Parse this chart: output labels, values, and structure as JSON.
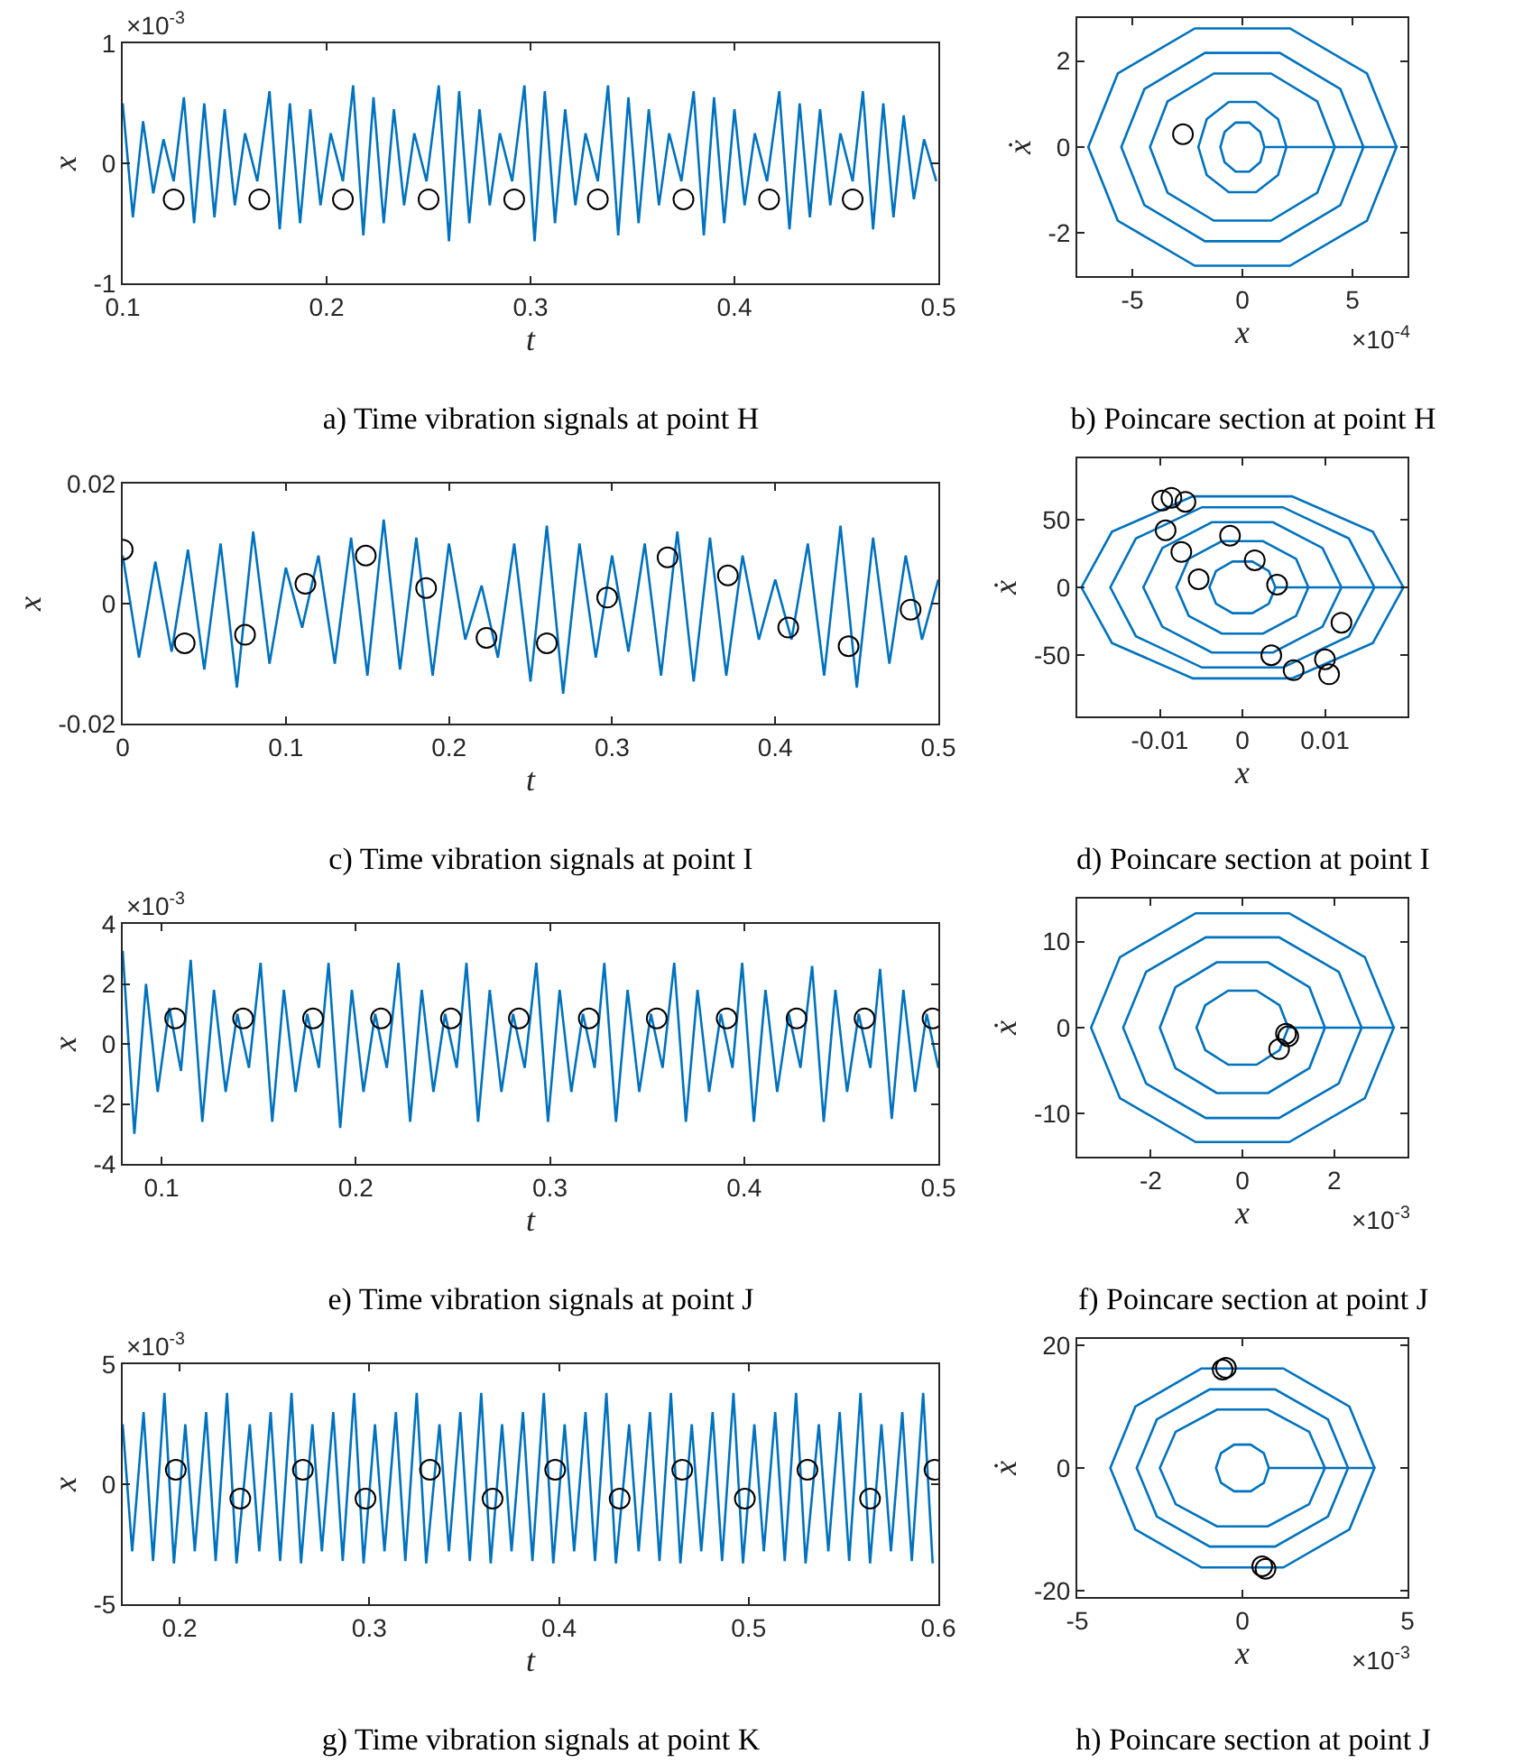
{
  "chart_data": [
    {
      "type": "line",
      "title": "a) Time vibration signals at point H",
      "xlabel": "t",
      "ylabel": "x",
      "annotations": [
        "×10$^{-3}$"
      ],
      "xlim": [
        0.1,
        0.5
      ],
      "xticks": [
        0.1,
        0.2,
        0.3,
        0.4,
        0.5
      ],
      "ylim": [
        -1,
        1
      ],
      "yticks": [
        -1,
        0,
        1
      ],
      "series": [
        {
          "type": "line",
          "color": "#0072bd",
          "x": [
            0.1,
            0.105,
            0.11,
            0.115,
            0.12,
            0.125,
            0.13,
            0.135,
            0.14,
            0.145,
            0.15,
            0.155,
            0.16,
            0.166,
            0.172,
            0.177,
            0.182,
            0.187,
            0.192,
            0.197,
            0.202,
            0.208,
            0.213,
            0.218,
            0.223,
            0.228,
            0.233,
            0.238,
            0.243,
            0.249,
            0.255,
            0.26,
            0.265,
            0.27,
            0.275,
            0.28,
            0.285,
            0.291,
            0.297,
            0.302,
            0.307,
            0.312,
            0.317,
            0.322,
            0.327,
            0.333,
            0.338,
            0.343,
            0.348,
            0.353,
            0.358,
            0.363,
            0.368,
            0.374,
            0.38,
            0.385,
            0.39,
            0.395,
            0.4,
            0.405,
            0.41,
            0.416,
            0.422,
            0.427,
            0.432,
            0.437,
            0.442,
            0.447,
            0.452,
            0.458,
            0.463,
            0.468,
            0.473,
            0.478,
            0.483,
            0.488,
            0.493,
            0.499
          ],
          "values": [
            0.5,
            -0.45,
            0.35,
            -0.25,
            0.2,
            -0.15,
            0.55,
            -0.5,
            0.5,
            -0.45,
            0.45,
            -0.35,
            0.25,
            -0.15,
            0.6,
            -0.55,
            0.5,
            -0.5,
            0.45,
            -0.35,
            0.25,
            -0.15,
            0.65,
            -0.6,
            0.55,
            -0.5,
            0.45,
            -0.35,
            0.25,
            -0.15,
            0.65,
            -0.65,
            0.6,
            -0.5,
            0.45,
            -0.35,
            0.25,
            -0.15,
            0.65,
            -0.65,
            0.6,
            -0.5,
            0.45,
            -0.35,
            0.25,
            -0.15,
            0.65,
            -0.6,
            0.55,
            -0.5,
            0.45,
            -0.35,
            0.25,
            -0.15,
            0.6,
            -0.6,
            0.55,
            -0.5,
            0.45,
            -0.35,
            0.25,
            -0.15,
            0.6,
            -0.55,
            0.5,
            -0.45,
            0.45,
            -0.35,
            0.25,
            -0.15,
            0.6,
            -0.55,
            0.5,
            -0.45,
            0.4,
            -0.3,
            0.2,
            -0.15
          ]
        },
        {
          "type": "scatter",
          "color": "#000000",
          "marker": "circle",
          "x": [
            0.125,
            0.167,
            0.208,
            0.25,
            0.292,
            0.333,
            0.375,
            0.417,
            0.458
          ],
          "values": [
            -0.3,
            -0.3,
            -0.3,
            -0.3,
            -0.3,
            -0.3,
            -0.3,
            -0.3,
            -0.3
          ]
        }
      ]
    },
    {
      "type": "line",
      "title": "b) Poincare section at point H",
      "xlabel": "x",
      "ylabel": "ẋ",
      "annotations": [
        "×10$^{-4}$"
      ],
      "xlim": [
        -7.5,
        7.5
      ],
      "xticks": [
        -5,
        0,
        5
      ],
      "ylim": [
        -3,
        3
      ],
      "yticks": [
        -2,
        0,
        2
      ],
      "series": [
        {
          "type": "line",
          "color": "#0072bd",
          "x": [
            7,
            5.66,
            2.16,
            -2.16,
            -5.66,
            -7,
            -5.66,
            -2.16,
            2.16,
            5.66,
            7,
            5.5,
            4.45,
            1.7,
            -1.7,
            -4.45,
            -5.5,
            -4.45,
            -1.7,
            1.7,
            4.45,
            5.5,
            4.2,
            3.4,
            1.3,
            -1.3,
            -3.4,
            -4.2,
            -3.4,
            -1.3,
            1.3,
            3.4,
            4.2,
            2,
            1.62,
            0.62,
            -0.62,
            -1.62,
            -2,
            -1.62,
            -0.62,
            0.62,
            1.62,
            2,
            1,
            0.81,
            0.31,
            -0.31,
            -0.81,
            -1,
            -0.81,
            -0.31,
            0.31,
            0.81,
            1
          ],
          "values": [
            0,
            1.71,
            2.76,
            2.76,
            1.71,
            0,
            -1.71,
            -2.76,
            -2.76,
            -1.71,
            0,
            0,
            1.35,
            2.19,
            2.19,
            1.35,
            0,
            -1.35,
            -2.19,
            -2.19,
            -1.35,
            0,
            0,
            1.06,
            1.71,
            1.71,
            1.06,
            0,
            -1.06,
            -1.71,
            -1.71,
            -1.06,
            0,
            0,
            0.65,
            1.05,
            1.05,
            0.65,
            0,
            -0.65,
            -1.05,
            -1.05,
            -0.65,
            0,
            0,
            0.35,
            0.57,
            0.57,
            0.35,
            0,
            -0.35,
            -0.57,
            -0.57,
            -0.35,
            0
          ]
        },
        {
          "type": "scatter",
          "color": "#000000",
          "marker": "circle",
          "x": [
            -2.7
          ],
          "values": [
            0.3
          ]
        }
      ]
    },
    {
      "type": "line",
      "title": "c) Time vibration signals at point I",
      "xlabel": "t",
      "ylabel": "x",
      "xlim": [
        0,
        0.5
      ],
      "xticks": [
        0,
        0.1,
        0.2,
        0.3,
        0.4,
        0.5
      ],
      "ylim": [
        -0.02,
        0.02
      ],
      "yticks": [
        -0.02,
        0,
        0.02
      ],
      "series": [
        {
          "type": "line",
          "color": "#0072bd",
          "x": [
            0,
            0.01,
            0.02,
            0.03,
            0.04,
            0.05,
            0.06,
            0.07,
            0.08,
            0.09,
            0.1,
            0.11,
            0.12,
            0.13,
            0.14,
            0.15,
            0.16,
            0.17,
            0.18,
            0.19,
            0.2,
            0.21,
            0.22,
            0.23,
            0.24,
            0.25,
            0.26,
            0.27,
            0.28,
            0.29,
            0.3,
            0.31,
            0.32,
            0.33,
            0.34,
            0.35,
            0.36,
            0.37,
            0.38,
            0.39,
            0.4,
            0.41,
            0.42,
            0.43,
            0.44,
            0.45,
            0.46,
            0.47,
            0.48,
            0.49,
            0.5
          ],
          "values": [
            0.008,
            -0.009,
            0.007,
            -0.008,
            0.009,
            -0.011,
            0.01,
            -0.014,
            0.012,
            -0.01,
            0.006,
            -0.004,
            0.008,
            -0.01,
            0.011,
            -0.012,
            0.014,
            -0.011,
            0.011,
            -0.012,
            0.01,
            -0.006,
            0.003,
            -0.009,
            0.01,
            -0.013,
            0.013,
            -0.015,
            0.01,
            -0.009,
            0.008,
            -0.008,
            0.01,
            -0.012,
            0.012,
            -0.013,
            0.011,
            -0.012,
            0.008,
            -0.006,
            0.004,
            -0.006,
            0.01,
            -0.012,
            0.013,
            -0.014,
            0.011,
            -0.01,
            0.008,
            -0.006,
            0.004
          ]
        },
        {
          "type": "scatter",
          "color": "#000000",
          "marker": "circle",
          "x": [
            0,
            0.038,
            0.075,
            0.112,
            0.149,
            0.186,
            0.223,
            0.26,
            0.297,
            0.334,
            0.371,
            0.408,
            0.445,
            0.483
          ],
          "values": [
            0.009,
            -0.0066,
            -0.0052,
            0.0033,
            0.008,
            0.0026,
            -0.0057,
            -0.0066,
            0.001,
            0.0077,
            0.0047,
            -0.004,
            -0.0071,
            -0.001
          ]
        }
      ]
    },
    {
      "type": "line",
      "title": "d) Poincare section at point I",
      "xlabel": "x",
      "ylabel": "ẋ",
      "xlim": [
        -0.02,
        0.02
      ],
      "xticks": [
        -0.01,
        0,
        0.01
      ],
      "ylim": [
        -95,
        95
      ],
      "yticks": [
        -50,
        0,
        50
      ],
      "series": [
        {
          "type": "line",
          "color": "#0072bd",
          "x": [
            0.0195,
            0.0158,
            0.006,
            -0.006,
            -0.0158,
            -0.0195,
            -0.0158,
            -0.006,
            0.006,
            0.0158,
            0.0195,
            0.016,
            0.0129,
            0.0049,
            -0.0049,
            -0.0129,
            -0.016,
            -0.0129,
            -0.0049,
            0.0049,
            0.0129,
            0.016,
            0.012,
            0.0097,
            0.0037,
            -0.0037,
            -0.0097,
            -0.012,
            -0.0097,
            -0.0037,
            0.0037,
            0.0097,
            0.012,
            0.008,
            0.0065,
            0.0025,
            -0.0025,
            -0.0065,
            -0.008,
            -0.0065,
            -0.0025,
            0.0025,
            0.0065,
            0.008,
            0.004,
            0.0032,
            0.0012,
            -0.0012,
            -0.0032,
            -0.004,
            -0.0032,
            -0.0012,
            0.0012,
            0.0032,
            0.004
          ],
          "values": [
            0,
            41,
            67,
            67,
            41,
            0,
            -41,
            -67,
            -67,
            -41,
            0,
            0,
            36,
            59,
            59,
            36,
            0,
            -36,
            -59,
            -59,
            -36,
            0,
            0,
            29,
            48,
            48,
            29,
            0,
            -29,
            -48,
            -48,
            -29,
            0,
            0,
            21,
            34,
            34,
            21,
            0,
            -21,
            -34,
            -34,
            -21,
            0,
            0,
            12,
            19,
            19,
            12,
            0,
            -12,
            -19,
            -19,
            -12,
            0
          ]
        },
        {
          "type": "scatter",
          "color": "#000000",
          "marker": "circle",
          "x": [
            -0.0097,
            -0.0086,
            -0.0069,
            -0.0093,
            -0.0074,
            -0.0053,
            -0.0015,
            0.0015,
            0.0042,
            0.012,
            0.0035,
            0.0062,
            0.01,
            0.0105
          ],
          "values": [
            64,
            66,
            63,
            42,
            26,
            6,
            38,
            20,
            2,
            -26,
            -50,
            -61,
            -53,
            -64
          ]
        }
      ]
    },
    {
      "type": "line",
      "title": "e) Time vibration signals at point J",
      "xlabel": "t",
      "ylabel": "x",
      "annotations": [
        "×10$^{-3}$"
      ],
      "xlim": [
        0.08,
        0.5
      ],
      "xticks": [
        0.1,
        0.2,
        0.3,
        0.4,
        0.5
      ],
      "ylim": [
        -4,
        4
      ],
      "yticks": [
        -4,
        -2,
        0,
        2,
        4
      ],
      "series": [
        {
          "type": "line",
          "color": "#0072bd",
          "x": [
            0.08,
            0.086,
            0.092,
            0.098,
            0.104,
            0.11,
            0.115,
            0.121,
            0.127,
            0.133,
            0.139,
            0.145,
            0.151,
            0.157,
            0.163,
            0.169,
            0.175,
            0.181,
            0.186,
            0.192,
            0.198,
            0.204,
            0.21,
            0.216,
            0.222,
            0.228,
            0.234,
            0.24,
            0.246,
            0.252,
            0.257,
            0.263,
            0.269,
            0.275,
            0.281,
            0.287,
            0.293,
            0.299,
            0.305,
            0.311,
            0.317,
            0.323,
            0.328,
            0.334,
            0.34,
            0.346,
            0.352,
            0.358,
            0.364,
            0.37,
            0.376,
            0.382,
            0.388,
            0.394,
            0.399,
            0.405,
            0.411,
            0.417,
            0.423,
            0.429,
            0.435,
            0.441,
            0.447,
            0.453,
            0.459,
            0.465,
            0.47,
            0.476,
            0.482,
            0.488,
            0.494,
            0.5
          ],
          "values": [
            3.1,
            -3.0,
            2.0,
            -1.6,
            1.2,
            -0.9,
            2.8,
            -2.6,
            1.8,
            -1.6,
            1.0,
            -0.8,
            2.7,
            -2.6,
            1.8,
            -1.6,
            1.0,
            -0.8,
            2.7,
            -2.8,
            1.8,
            -1.6,
            1.0,
            -0.8,
            2.7,
            -2.6,
            1.8,
            -1.6,
            1.0,
            -0.8,
            2.7,
            -2.6,
            1.8,
            -1.6,
            1.0,
            -0.8,
            2.7,
            -2.6,
            1.8,
            -1.6,
            1.0,
            -0.8,
            2.7,
            -2.6,
            1.8,
            -1.6,
            1.0,
            -0.8,
            2.7,
            -2.6,
            1.8,
            -1.6,
            1.0,
            -0.8,
            2.7,
            -2.6,
            1.8,
            -1.6,
            1.0,
            -0.8,
            2.6,
            -2.6,
            1.8,
            -1.6,
            1.0,
            -0.8,
            2.5,
            -2.5,
            1.8,
            -1.6,
            1.0,
            -0.8
          ]
        },
        {
          "type": "scatter",
          "color": "#000000",
          "marker": "circle",
          "x": [
            0.107,
            0.142,
            0.178,
            0.213,
            0.249,
            0.284,
            0.32,
            0.355,
            0.391,
            0.427,
            0.462,
            0.497
          ],
          "values": [
            0.85,
            0.85,
            0.85,
            0.85,
            0.85,
            0.85,
            0.85,
            0.85,
            0.85,
            0.85,
            0.85,
            0.85
          ]
        }
      ]
    },
    {
      "type": "line",
      "title": "f) Poincare section at point J",
      "xlabel": "x",
      "ylabel": "ẋ",
      "annotations": [
        "×10$^{-3}$"
      ],
      "xlim": [
        -3.6,
        3.6
      ],
      "xticks": [
        -2,
        0,
        2
      ],
      "ylim": [
        -15,
        15
      ],
      "yticks": [
        -10,
        0,
        10
      ],
      "series": [
        {
          "type": "line",
          "color": "#0072bd",
          "x": [
            3.3,
            2.67,
            1.02,
            -1.02,
            -2.67,
            -3.3,
            -2.67,
            -1.02,
            1.02,
            2.67,
            3.3,
            2.6,
            2.1,
            0.8,
            -0.8,
            -2.1,
            -2.6,
            -2.1,
            -0.8,
            0.8,
            2.1,
            2.6,
            1.8,
            1.46,
            0.56,
            -0.56,
            -1.46,
            -1.8,
            -1.46,
            -0.56,
            0.56,
            1.46,
            1.8,
            1,
            0.81,
            0.31,
            -0.31,
            -0.81,
            -1,
            -0.81,
            -0.31,
            0.31,
            0.81,
            1
          ],
          "values": [
            0,
            8.2,
            13.3,
            13.3,
            8.2,
            0,
            -8.2,
            -13.3,
            -13.3,
            -8.2,
            0,
            0,
            6.5,
            10.5,
            10.5,
            6.5,
            0,
            -6.5,
            -10.5,
            -10.5,
            -6.5,
            0,
            0,
            4.7,
            7.6,
            7.6,
            4.7,
            0,
            -4.7,
            -7.6,
            -7.6,
            -4.7,
            0,
            0,
            2.6,
            4.3,
            4.3,
            2.6,
            0,
            -2.6,
            -4.3,
            -4.3,
            -2.6,
            0
          ]
        },
        {
          "type": "scatter",
          "color": "#000000",
          "marker": "circle",
          "x": [
            0.95,
            1.0,
            0.8
          ],
          "values": [
            -0.7,
            -1,
            -2.5
          ]
        }
      ]
    },
    {
      "type": "line",
      "title": "g) Time vibration signals at point K",
      "xlabel": "t",
      "ylabel": "x",
      "annotations": [
        "×10$^{-3}$"
      ],
      "xlim": [
        0.17,
        0.6
      ],
      "xticks": [
        0.2,
        0.3,
        0.4,
        0.5,
        0.6
      ],
      "ylim": [
        -5,
        5
      ],
      "yticks": [
        -5,
        0,
        5
      ],
      "series": [
        {
          "type": "line",
          "color": "#0072bd",
          "x": [
            0.17,
            0.175,
            0.181,
            0.186,
            0.192,
            0.197,
            0.203,
            0.208,
            0.214,
            0.219,
            0.225,
            0.23,
            0.237,
            0.242,
            0.248,
            0.253,
            0.259,
            0.264,
            0.27,
            0.275,
            0.281,
            0.286,
            0.292,
            0.297,
            0.303,
            0.308,
            0.314,
            0.319,
            0.325,
            0.33,
            0.337,
            0.342,
            0.348,
            0.353,
            0.359,
            0.364,
            0.37,
            0.375,
            0.381,
            0.386,
            0.392,
            0.397,
            0.403,
            0.408,
            0.414,
            0.419,
            0.425,
            0.43,
            0.437,
            0.442,
            0.448,
            0.453,
            0.459,
            0.464,
            0.47,
            0.475,
            0.481,
            0.486,
            0.492,
            0.497,
            0.503,
            0.508,
            0.514,
            0.519,
            0.525,
            0.53,
            0.537,
            0.542,
            0.548,
            0.553,
            0.559,
            0.564,
            0.57,
            0.575,
            0.581,
            0.586,
            0.592,
            0.597
          ],
          "values": [
            2.5,
            -2.8,
            3.0,
            -3.2,
            3.8,
            -3.3,
            2.5,
            -2.8,
            3.0,
            -3.2,
            3.8,
            -3.3,
            2.5,
            -2.8,
            3.0,
            -3.2,
            3.8,
            -3.3,
            2.5,
            -2.8,
            3.0,
            -3.2,
            3.8,
            -3.3,
            2.5,
            -2.8,
            3.0,
            -3.2,
            3.8,
            -3.3,
            2.5,
            -2.8,
            3.0,
            -3.2,
            3.8,
            -3.3,
            2.5,
            -2.8,
            3.0,
            -3.2,
            3.8,
            -3.3,
            2.5,
            -2.8,
            3.0,
            -3.2,
            3.8,
            -3.3,
            2.5,
            -2.8,
            3.0,
            -3.2,
            3.8,
            -3.3,
            2.5,
            -2.8,
            3.0,
            -3.2,
            3.8,
            -3.3,
            2.5,
            -2.8,
            3.0,
            -3.2,
            3.8,
            -3.3,
            2.5,
            -2.8,
            3.0,
            -3.2,
            3.8,
            -3.3,
            2.5,
            -2.8,
            3.0,
            -3.2,
            3.8,
            -3.3
          ]
        },
        {
          "type": "scatter",
          "color": "#000000",
          "marker": "circle",
          "x": [
            0.198,
            0.232,
            0.265,
            0.298,
            0.332,
            0.365,
            0.398,
            0.432,
            0.465,
            0.498,
            0.531,
            0.564,
            0.598
          ],
          "values": [
            0.6,
            -0.6,
            0.6,
            -0.6,
            0.6,
            -0.6,
            0.6,
            -0.6,
            0.6,
            -0.6,
            0.6,
            -0.6,
            0.6
          ]
        }
      ]
    },
    {
      "type": "line",
      "title": "h) Poincare section at point J",
      "xlabel": "x",
      "ylabel": "ẋ",
      "annotations": [
        "×10$^{-3}$"
      ],
      "xlim": [
        -5,
        5
      ],
      "xticks": [
        -5,
        0,
        5
      ],
      "ylim": [
        -21,
        21
      ],
      "yticks": [
        -20,
        0,
        20
      ],
      "series": [
        {
          "type": "line",
          "color": "#0072bd",
          "x": [
            4,
            3.24,
            1.24,
            -1.24,
            -3.24,
            -4,
            -3.24,
            -1.24,
            1.24,
            3.24,
            4,
            3.2,
            2.59,
            0.99,
            -0.99,
            -2.59,
            -3.2,
            -2.59,
            -0.99,
            0.99,
            2.59,
            3.2,
            2.5,
            2.02,
            0.77,
            -0.77,
            -2.02,
            -2.5,
            -2.02,
            -0.77,
            0.77,
            2.02,
            2.5,
            0.8,
            0.65,
            0.25,
            -0.25,
            -0.65,
            -0.8,
            -0.65,
            -0.25,
            0.25,
            0.65,
            0.8
          ],
          "values": [
            0,
            10,
            16.2,
            16.2,
            10,
            0,
            -10,
            -16.2,
            -16.2,
            -10,
            0,
            0,
            7.9,
            12.8,
            12.8,
            7.9,
            0,
            -7.9,
            -12.8,
            -12.8,
            -7.9,
            0,
            0,
            5.9,
            9.5,
            9.5,
            5.9,
            0,
            -5.9,
            -9.5,
            -9.5,
            -5.9,
            0,
            0,
            2.4,
            3.8,
            3.8,
            2.4,
            0,
            -2.4,
            -3.8,
            -3.8,
            -2.4,
            0
          ]
        },
        {
          "type": "scatter",
          "color": "#000000",
          "marker": "circle",
          "x": [
            -0.6,
            -0.5,
            0.6,
            0.7
          ],
          "values": [
            16,
            16.3,
            -16,
            -16.4
          ]
        }
      ]
    }
  ]
}
